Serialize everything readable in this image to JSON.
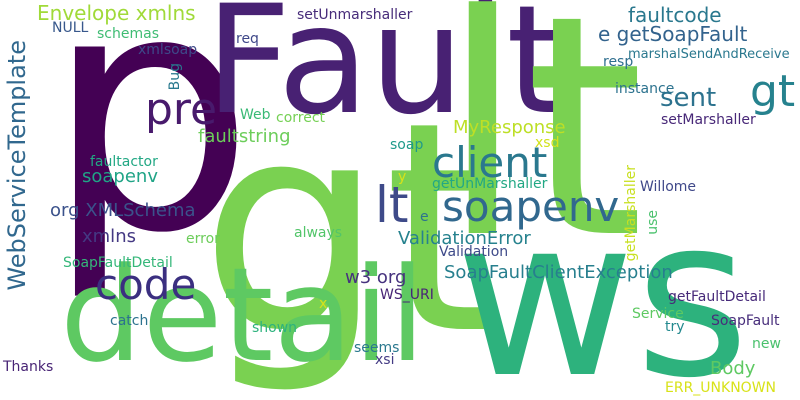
{
  "words": [
    {
      "text": "p",
      "color": "#440154",
      "vertical": false
    },
    {
      "text": "Fault",
      "color": "#482173",
      "vertical": false
    },
    {
      "text": "gt",
      "color": "#7ad151",
      "vertical": false
    },
    {
      "text": "lt",
      "color": "#7ad151",
      "vertical": false
    },
    {
      "text": "ws",
      "color": "#2db27d",
      "vertical": false
    },
    {
      "text": "detail",
      "color": "#5ec962",
      "vertical": false
    },
    {
      "text": "code",
      "color": "#3b2f80",
      "vertical": false
    },
    {
      "text": "soapenv",
      "color": "#31688e",
      "vertical": false
    },
    {
      "text": "lt",
      "color": "#3e4a89",
      "vertical": false
    },
    {
      "text": "client",
      "color": "#2a788e",
      "vertical": false
    },
    {
      "text": "pre",
      "color": "#481a6c",
      "vertical": false
    },
    {
      "text": "sent",
      "color": "#2c728e",
      "vertical": false
    },
    {
      "text": "gt",
      "color": "#26828e",
      "vertical": false
    },
    {
      "text": "WebServiceTemplate",
      "color": "#31688e",
      "vertical": true
    },
    {
      "text": "Envelope xmlns",
      "color": "#a0da39",
      "vertical": false
    },
    {
      "text": "faultcode",
      "color": "#2a788e",
      "vertical": false
    },
    {
      "text": "e getSoapFault",
      "color": "#33638d",
      "vertical": false
    },
    {
      "text": "marshalSendAndReceive",
      "color": "#2a788e",
      "vertical": false
    },
    {
      "text": "MyResponse",
      "color": "#bddf26",
      "vertical": false
    },
    {
      "text": "faultstring",
      "color": "#6ccd5a",
      "vertical": false
    },
    {
      "text": "soapenv",
      "color": "#20a486",
      "vertical": false
    },
    {
      "text": "org XMLSchema",
      "color": "#3b528b",
      "vertical": false
    },
    {
      "text": "xmlns",
      "color": "#443983",
      "vertical": false
    },
    {
      "text": "ValidationError",
      "color": "#26828e",
      "vertical": false
    },
    {
      "text": "SoapFaultClientException",
      "color": "#277f8e",
      "vertical": false
    },
    {
      "text": "w3 org",
      "color": "#46327e",
      "vertical": false
    },
    {
      "text": "Body",
      "color": "#5ec962",
      "vertical": false
    },
    {
      "text": "getFaultDetail",
      "color": "#472a7a",
      "vertical": false
    },
    {
      "text": "SoapFault",
      "color": "#472d7b",
      "vertical": false
    },
    {
      "text": "setUnmarshaller",
      "color": "#472c7a",
      "vertical": false
    },
    {
      "text": "NULL",
      "color": "#38588c",
      "vertical": false
    },
    {
      "text": "schemas",
      "color": "#3fbc73",
      "vertical": false
    },
    {
      "text": "xmlsoap",
      "color": "#3e4989",
      "vertical": false
    },
    {
      "text": "req",
      "color": "#3f4889",
      "vertical": false
    },
    {
      "text": "resp",
      "color": "#2e6e8e",
      "vertical": false
    },
    {
      "text": "instance",
      "color": "#2c728e",
      "vertical": false
    },
    {
      "text": "Bug",
      "color": "#29798e",
      "vertical": true
    },
    {
      "text": "Web",
      "color": "#3aba76",
      "vertical": false
    },
    {
      "text": "correct",
      "color": "#75d054",
      "vertical": false
    },
    {
      "text": "setMarshaller",
      "color": "#482878",
      "vertical": false
    },
    {
      "text": "soap",
      "color": "#1f9a8a",
      "vertical": false
    },
    {
      "text": "xsd",
      "color": "#d2e21b",
      "vertical": false
    },
    {
      "text": "faultactor",
      "color": "#22a884",
      "vertical": false
    },
    {
      "text": "getUnMarshaller",
      "color": "#22a884",
      "vertical": false
    },
    {
      "text": "y",
      "color": "#d8e219",
      "vertical": false
    },
    {
      "text": "Willome",
      "color": "#3f4889",
      "vertical": false
    },
    {
      "text": "getMarshaller",
      "color": "#c8e020",
      "vertical": true
    },
    {
      "text": "use",
      "color": "#4ac16d",
      "vertical": true
    },
    {
      "text": "e",
      "color": "#2c728e",
      "vertical": false
    },
    {
      "text": "always",
      "color": "#52c569",
      "vertical": false
    },
    {
      "text": "error",
      "color": "#6ccd5a",
      "vertical": false
    },
    {
      "text": "Validation",
      "color": "#3e4a89",
      "vertical": false
    },
    {
      "text": "SoapFaultDetail",
      "color": "#35b779",
      "vertical": false
    },
    {
      "text": "WS_URI",
      "color": "#482576",
      "vertical": false
    },
    {
      "text": "x",
      "color": "#d5e21a",
      "vertical": false
    },
    {
      "text": "catch",
      "color": "#2c728e",
      "vertical": false
    },
    {
      "text": "shown",
      "color": "#2db27d",
      "vertical": false
    },
    {
      "text": "Service",
      "color": "#5ec962",
      "vertical": false
    },
    {
      "text": "try",
      "color": "#23898e",
      "vertical": false
    },
    {
      "text": "seems",
      "color": "#2a788e",
      "vertical": false
    },
    {
      "text": "new",
      "color": "#4ac16d",
      "vertical": false
    },
    {
      "text": "Thanks",
      "color": "#482475",
      "vertical": false
    },
    {
      "text": "xsi",
      "color": "#443b84",
      "vertical": false
    },
    {
      "text": "ERR_UNKNOWN",
      "color": "#d8e219",
      "vertical": false
    }
  ]
}
